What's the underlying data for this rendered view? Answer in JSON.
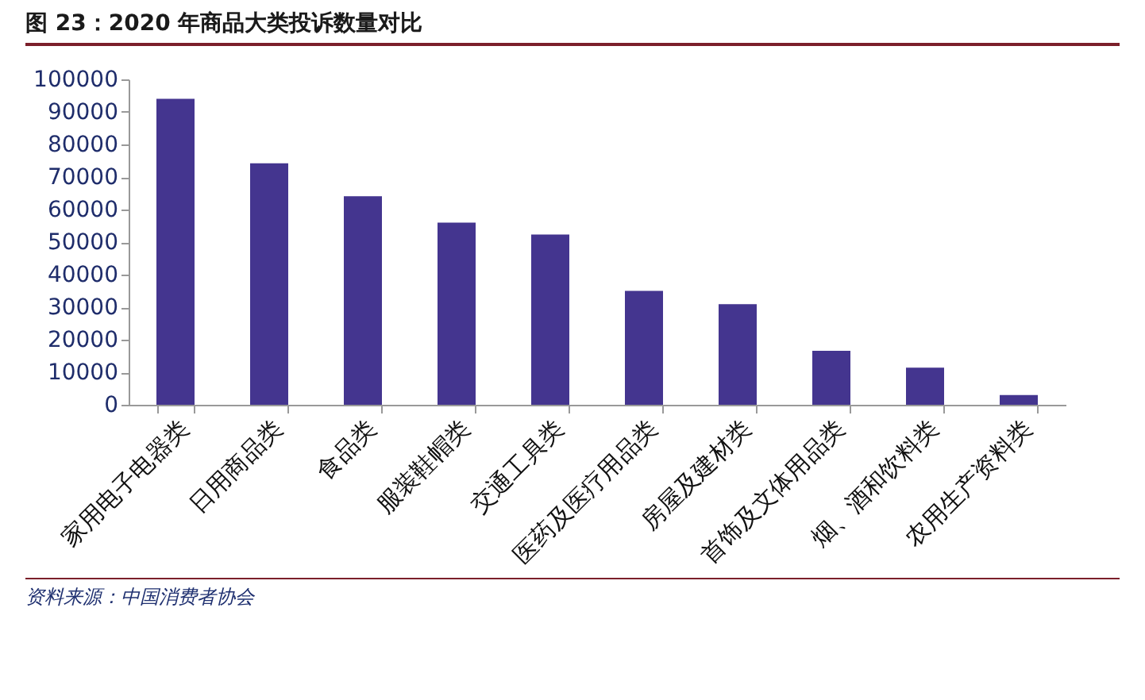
{
  "chart_data": {
    "type": "bar",
    "title": "图 23：2020 年商品大类投诉数量对比",
    "categories": [
      "家用电子电器类",
      "日用商品类",
      "食品类",
      "服装鞋帽类",
      "交通工具类",
      "医药及医疗用品类",
      "房屋及建材类",
      "首饰及文体用品类",
      "烟、酒和饮料类",
      "农用生产资料类"
    ],
    "values": [
      94000,
      74200,
      64100,
      56000,
      52300,
      35000,
      30900,
      16600,
      11400,
      3000
    ],
    "color": "#44358f",
    "ylim": [
      0,
      100000
    ],
    "yticks": [
      0,
      10000,
      20000,
      30000,
      40000,
      50000,
      60000,
      70000,
      80000,
      90000,
      100000
    ],
    "grid": false,
    "annotations": [
      "资料来源：中国消费者协会"
    ]
  }
}
